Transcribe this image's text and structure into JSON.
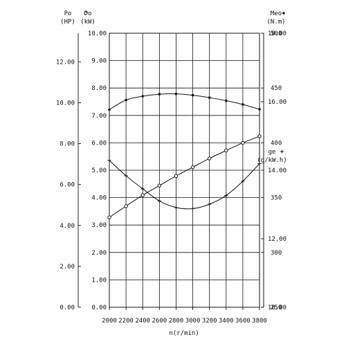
{
  "chart_data": {
    "type": "line",
    "x": [
      2000,
      2200,
      2400,
      2600,
      2800,
      3000,
      3200,
      3400,
      3600,
      3800
    ],
    "xlabel": "n(r/min)",
    "xlim": [
      2000,
      3800
    ],
    "x_ticks": [
      "2000",
      "2200",
      "2400",
      "2600",
      "2800",
      "3000",
      "3200",
      "3400",
      "3600",
      "3800"
    ],
    "grid": true,
    "axes": {
      "power_kw": {
        "label_lines": [
          "Po",
          "(kW)"
        ],
        "lim": [
          0,
          10
        ],
        "ticks": [
          "0.00",
          "1.00",
          "2.00",
          "3.00",
          "4.00",
          "5.00",
          "6.00",
          "7.00",
          "8.00",
          "9.00",
          "10.00"
        ]
      },
      "power_hp": {
        "label_lines": [
          "Po",
          "(HP)"
        ],
        "lim": [
          0,
          13.4
        ],
        "ticks": [
          "0.00",
          "2.00",
          "4.00",
          "6.00",
          "8.00",
          "10.00",
          "12.00"
        ]
      },
      "torque": {
        "label_lines": [
          "Meo",
          "(N.m)"
        ],
        "lim": [
          10,
          18
        ],
        "ticks": [
          "10.00",
          "12.00",
          "14.00",
          "16.00",
          "18.00"
        ]
      },
      "fuel": {
        "label_lines": [
          "ge",
          "(g/kW.h)"
        ],
        "lim": [
          250,
          500
        ],
        "ticks": [
          "250",
          "300",
          "350",
          "400",
          "450",
          "500"
        ]
      }
    },
    "series": [
      {
        "axis": "power_kw",
        "marker": "circle",
        "values": [
          3.28,
          3.69,
          4.09,
          4.44,
          4.79,
          5.11,
          5.43,
          5.72,
          6.0,
          6.24
        ]
      },
      {
        "axis": "torque",
        "marker": "filled-dot",
        "values": [
          15.77,
          16.05,
          16.16,
          16.22,
          16.23,
          16.19,
          16.12,
          16.03,
          15.92,
          15.78
        ]
      },
      {
        "axis": "fuel",
        "marker": "plus",
        "values": [
          384,
          370,
          358,
          347,
          341,
          340,
          344,
          352,
          365,
          381
        ]
      }
    ]
  }
}
